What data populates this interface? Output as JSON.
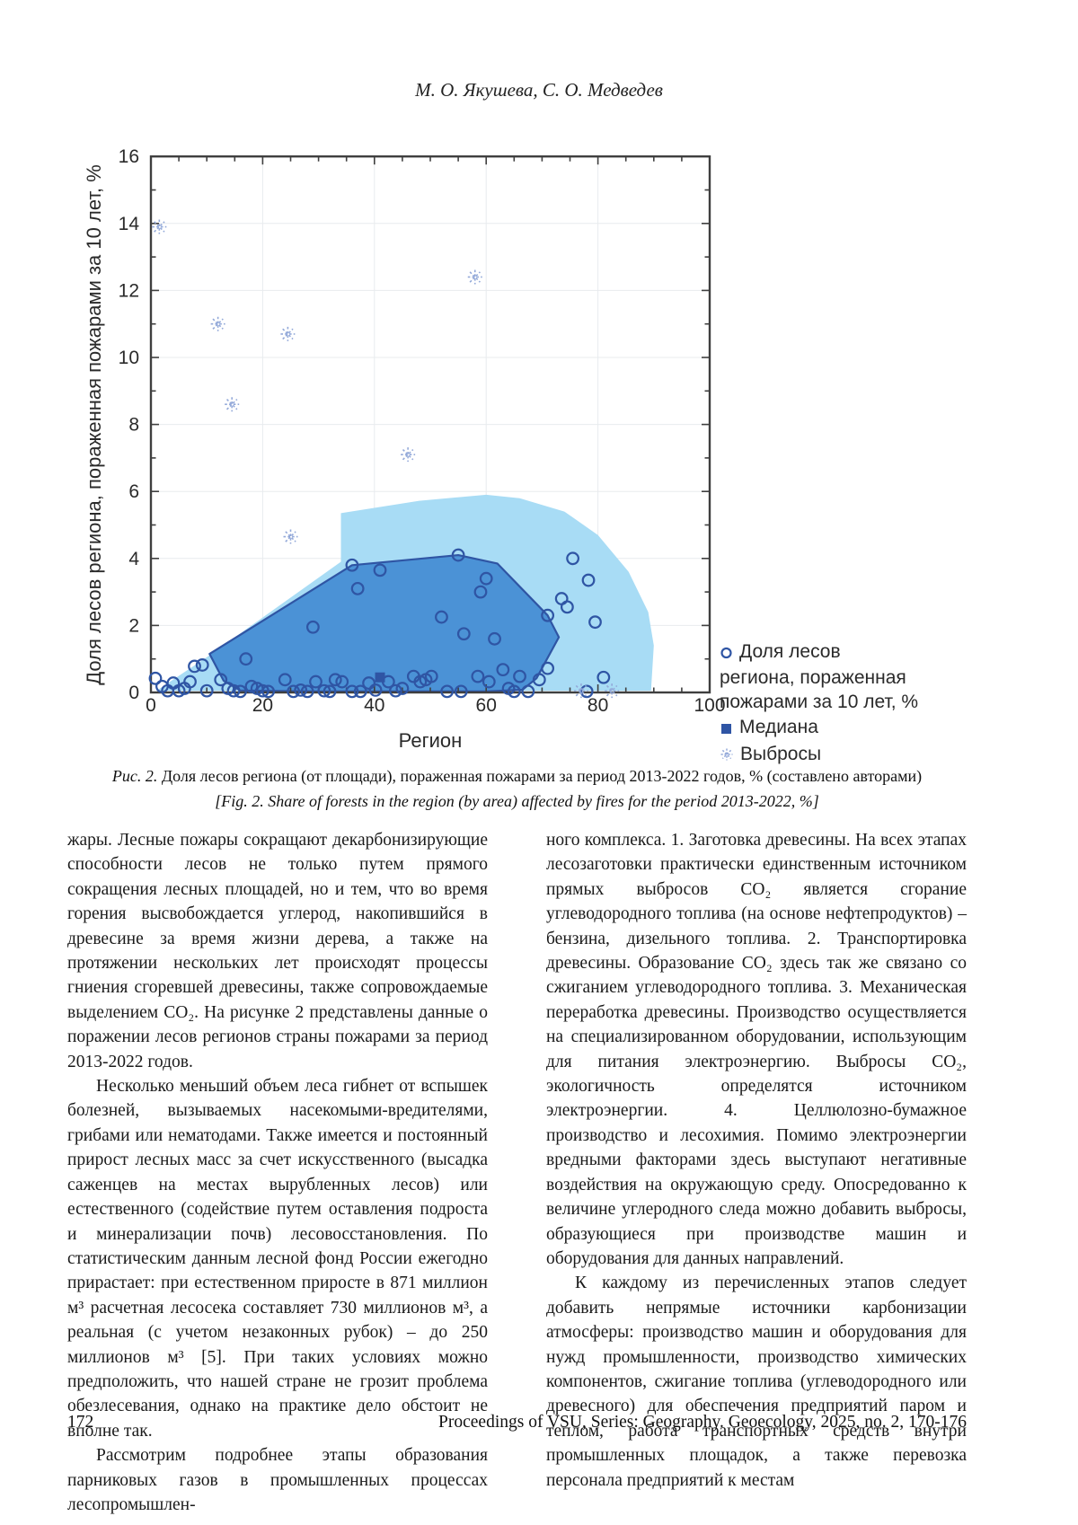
{
  "page": {
    "header_authors": "М. О. Якушева, С. О. Медведев",
    "footer": {
      "page_number": "172",
      "journal": "Proceedings of VSU, Series: Geography. Geoecology, 2025, no. 2, 170-176"
    }
  },
  "figure": {
    "caption_ru_label": "Рис. 2.",
    "caption_ru_text": "Доля лесов региона (от площади), пораженная пожарами за период 2013-2022 годов, % (составлено авторами)",
    "caption_en_label": "[Fig. 2.",
    "caption_en_text": "Share of forests in the region (by area) affected by fires for the period 2013-2022, %]"
  },
  "chart_data": {
    "type": "scatter",
    "xlabel": "Регион",
    "ylabel": "Доля лесов региона, пораженная пожарами за 10 лет, %",
    "xlim": [
      0,
      100
    ],
    "ylim": [
      0,
      16
    ],
    "xticks": [
      0,
      20,
      40,
      60,
      80,
      100
    ],
    "yticks": [
      0,
      2,
      4,
      6,
      8,
      10,
      12,
      14,
      16
    ],
    "x_minor_step": 5,
    "y_minor_step": 1,
    "grid": true,
    "legend_position": "right-bottom",
    "legend": [
      {
        "marker": "circle",
        "label": "Доля лесов региона, пораженная пожарами за 10 лет, %"
      },
      {
        "marker": "square",
        "label": "Медиана"
      },
      {
        "marker": "asterisk",
        "label": "Выбросы"
      }
    ],
    "colors": {
      "outer_fill": "#a8dcf5",
      "inner_fill": "#4b92d6",
      "line": "#2f55a4",
      "marker": "#2f55a4",
      "outlier": "#93a9d9",
      "grid": "#e8ebee",
      "axis": "#3f3f3f"
    },
    "outer_hull": [
      [
        34,
        5.35
      ],
      [
        48,
        5.72
      ],
      [
        60,
        5.9
      ],
      [
        66,
        5.8
      ],
      [
        74,
        5.4
      ],
      [
        80,
        4.7
      ],
      [
        85.5,
        3.6
      ],
      [
        89,
        2.4
      ],
      [
        90,
        1.4
      ],
      [
        89.5,
        0.05
      ],
      [
        1,
        0.05
      ],
      [
        10,
        1.05
      ],
      [
        34,
        3.9
      ]
    ],
    "inner_hull": [
      [
        10.5,
        1.15
      ],
      [
        36,
        3.8
      ],
      [
        55,
        4.1
      ],
      [
        62,
        3.85
      ],
      [
        71,
        2.3
      ],
      [
        73,
        1.65
      ],
      [
        69,
        0.42
      ],
      [
        66.5,
        0.08
      ],
      [
        60,
        0.03
      ],
      [
        30,
        0.03
      ],
      [
        16,
        0.06
      ],
      [
        13,
        0.35
      ]
    ],
    "points": [
      [
        0.8,
        0.42
      ],
      [
        2,
        0.18
      ],
      [
        3,
        0.05
      ],
      [
        4,
        0.28
      ],
      [
        5,
        0.05
      ],
      [
        6,
        0.12
      ],
      [
        7,
        0.32
      ],
      [
        7.8,
        0.78
      ],
      [
        9.2,
        0.82
      ],
      [
        10,
        0.05
      ],
      [
        12.5,
        0.38
      ],
      [
        13.8,
        0.12
      ],
      [
        14.8,
        0.05
      ],
      [
        16,
        0.03
      ],
      [
        17,
        1.0
      ],
      [
        18,
        0.18
      ],
      [
        19,
        0.12
      ],
      [
        20,
        0.05
      ],
      [
        21,
        0.03
      ],
      [
        24,
        0.38
      ],
      [
        25.5,
        0.03
      ],
      [
        26.8,
        0.07
      ],
      [
        28,
        0.03
      ],
      [
        29.5,
        0.32
      ],
      [
        31,
        0.05
      ],
      [
        32,
        0.03
      ],
      [
        33,
        0.38
      ],
      [
        34.2,
        0.32
      ],
      [
        36,
        0.03
      ],
      [
        37.5,
        0.03
      ],
      [
        39,
        0.28
      ],
      [
        40.2,
        0.07
      ],
      [
        42.5,
        0.32
      ],
      [
        43.8,
        0.05
      ],
      [
        45,
        0.12
      ],
      [
        47,
        0.48
      ],
      [
        48.2,
        0.32
      ],
      [
        49.2,
        0.38
      ],
      [
        50.2,
        0.48
      ],
      [
        53,
        0.03
      ],
      [
        55.5,
        0.03
      ],
      [
        58.5,
        0.48
      ],
      [
        60.5,
        0.32
      ],
      [
        63,
        0.68
      ],
      [
        64,
        0.12
      ],
      [
        65,
        0.03
      ],
      [
        66,
        0.48
      ],
      [
        67.5,
        0.03
      ],
      [
        69.5,
        0.38
      ],
      [
        71,
        0.72
      ],
      [
        78,
        0.03
      ],
      [
        81,
        0.45
      ],
      [
        29,
        1.95
      ],
      [
        36,
        3.8
      ],
      [
        41,
        3.65
      ],
      [
        37,
        3.1
      ],
      [
        55,
        4.1
      ],
      [
        60,
        3.4
      ],
      [
        59,
        3.0
      ],
      [
        52,
        2.25
      ],
      [
        56,
        1.75
      ],
      [
        61.5,
        1.6
      ],
      [
        71,
        2.3
      ],
      [
        75.5,
        4.0
      ],
      [
        78.3,
        3.35
      ],
      [
        73.5,
        2.8
      ],
      [
        74.5,
        2.55
      ],
      [
        79.5,
        2.1
      ]
    ],
    "median": [
      41,
      0.45
    ],
    "outliers": [
      [
        1.5,
        13.9
      ],
      [
        12,
        11.0
      ],
      [
        24.5,
        10.7
      ],
      [
        58,
        12.4
      ],
      [
        14.5,
        8.6
      ],
      [
        46,
        7.1
      ],
      [
        25,
        4.65
      ],
      [
        77,
        0.05
      ],
      [
        82.5,
        0.05
      ]
    ]
  },
  "article": {
    "left": [
      {
        "indent": false,
        "text": "жары. Лесные пожары сокращают декарбонизирующие способности лесов не только путем прямого сокращения лесных площадей, но и тем, что во время горения высвобождается углерод, накопившийся в древесине за время жизни дерева, а также на протяжении нескольких лет происходят процессы гниения сгоревшей древесины, также сопровождаемые выделением CO₂. На рисунке 2 представлены данные о поражении лесов регионов страны пожарами за период 2013-2022 годов."
      },
      {
        "indent": true,
        "text": "Несколько меньший объем леса гибнет от вспышек болезней, вызываемых насекомыми-вредителями, грибами или нематодами. Также имеется и постоянный прирост лесных масс за счет искусственного (высадка саженцев на местах вырубленных лесов) или естественного (содействие путем оставления подроста и минерализации почв) лесовосстановления. По статистическим данным лесной фонд России ежегодно прирастает: при естественном приросте в 871 миллион м³ расчетная лесосека составляет 730 миллионов м³, а реальная (с учетом незаконных рубок) – до 250 миллионов м³ [5]. При таких условиях можно предположить, что нашей стране не грозит проблема обезлесевания, однако на практике дело обстоит не вполне так."
      },
      {
        "indent": true,
        "text": "Рассмотрим подробнее этапы образования парниковых газов в промышленных процессах лесопромышлен-"
      }
    ],
    "right": [
      {
        "indent": false,
        "text": "ного комплекса. 1. Заготовка древесины. На всех этапах лесозаготовки практически единственным источником прямых выбросов CO₂ является сгорание углеводородного топлива (на основе нефтепродуктов) – бензина, дизельного топлива. 2. Транспортировка древесины. Образование CO₂ здесь так же связано со сжиганием углеводородного топлива. 3. Механическая переработка древесины. Производство осуществляется на специализированном оборудовании, использующим для питания электроэнергию. Выбросы CO₂, экологичность определятся источником электроэнергии. 4. Целлюлозно-бумажное производство и лесохимия. Помимо электроэнергии вредными факторами здесь выступают негативные воздействия на окружающую среду. Опосредованно к величине углеродного следа можно добавить выбросы, образующиеся при производстве машин и оборудования для данных направлений."
      },
      {
        "indent": true,
        "text": "К каждому из перечисленных этапов следует добавить непрямые источники карбонизации атмосферы: производство машин и оборудования для нужд промышленности, производство химических компонентов, сжигание топлива (углеводородного или древесного) для обеспечения предприятий паром и теплом, работа транспортных средств внутри промышленных площадок, а также перевозка персонала предприятий к местам"
      }
    ]
  }
}
